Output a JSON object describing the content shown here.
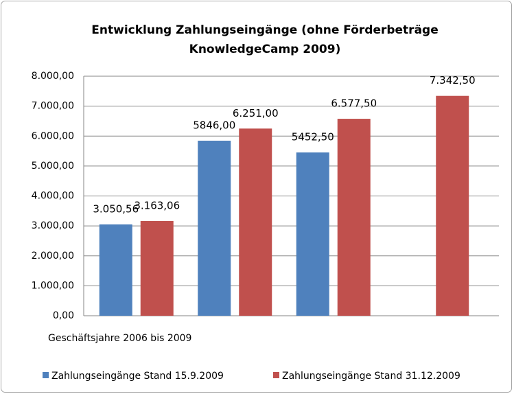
{
  "chart_data": {
    "type": "bar",
    "title": [
      "Entwicklung Zahlungseingänge (ohne Förderbeträge",
      "KnowledgeCamp 2009)"
    ],
    "x_label": "Geschäftsjahre 2006 bis 2009",
    "categories": [
      null,
      null,
      null,
      null
    ],
    "series": [
      {
        "name": "Zahlungseingänge Stand 15.9.2009",
        "color": "#4f81bd",
        "values": [
          3050.56,
          5846,
          5452.5,
          null
        ],
        "value_labels": [
          "3.050,56",
          "5846,00",
          "5452,50",
          null
        ]
      },
      {
        "name": "Zahlungseingänge Stand 31.12.2009",
        "color": "#c0504d",
        "values": [
          3163.06,
          6251,
          6577.5,
          7342.5
        ],
        "value_labels": [
          "3.163,06",
          "6.251,00",
          "6.577,50",
          "7.342,50"
        ]
      }
    ],
    "ylim": [
      0,
      8000
    ],
    "yticks": [
      {
        "value": 0,
        "label": "0,00"
      },
      {
        "value": 1000,
        "label": "1.000,00"
      },
      {
        "value": 2000,
        "label": "2.000,00"
      },
      {
        "value": 3000,
        "label": "3.000,00"
      },
      {
        "value": 4000,
        "label": "4.000,00"
      },
      {
        "value": 5000,
        "label": "5.000,00"
      },
      {
        "value": 6000,
        "label": "6.000,00"
      },
      {
        "value": 7000,
        "label": "7.000,00"
      },
      {
        "value": 8000,
        "label": "8.000,00"
      }
    ],
    "grid": true,
    "legend": "bottom"
  }
}
